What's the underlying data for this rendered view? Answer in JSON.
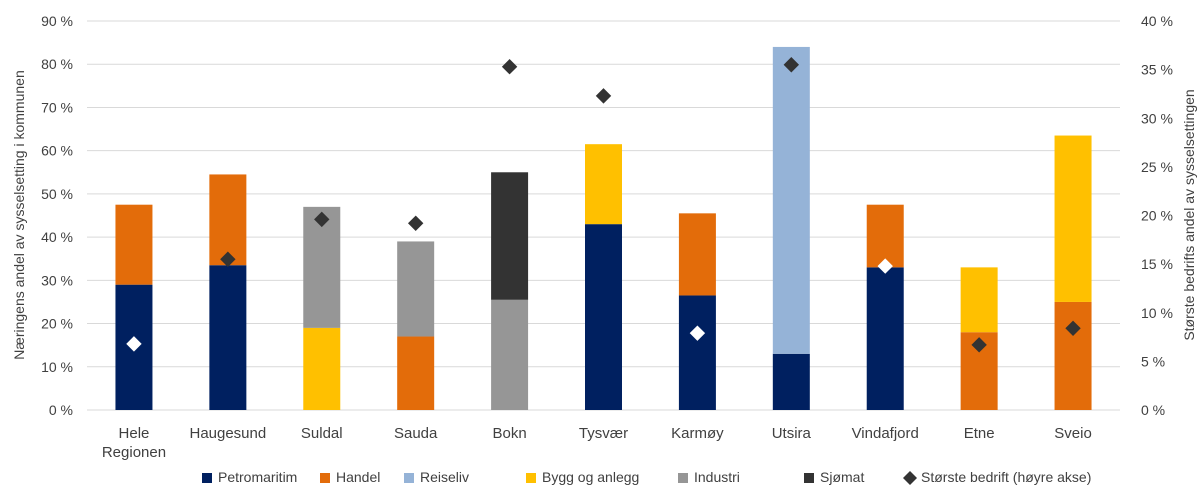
{
  "chart_data": {
    "type": "bar",
    "stacked": true,
    "categories": [
      [
        "Hele",
        "Regionen"
      ],
      [
        "Haugesund"
      ],
      [
        "Suldal"
      ],
      [
        "Sauda"
      ],
      [
        "Bokn"
      ],
      [
        "Tysvær"
      ],
      [
        "Karmøy"
      ],
      [
        "Utsira"
      ],
      [
        "Vindafjord"
      ],
      [
        "Etne"
      ],
      [
        "Sveio"
      ]
    ],
    "series": [
      {
        "name": "Petromaritim",
        "color": "#002060",
        "values": [
          29,
          33.5,
          0,
          0,
          0,
          43,
          26.5,
          13,
          33,
          0,
          0
        ]
      },
      {
        "name": "Handel",
        "color": "#E36C0A",
        "values": [
          18.5,
          21,
          0,
          17,
          0,
          0,
          19,
          0,
          14.5,
          18,
          25
        ]
      },
      {
        "name": "Reiseliv",
        "color": "#95B3D7",
        "values": [
          0,
          0,
          0,
          0,
          0,
          0,
          0,
          71,
          0,
          0,
          0
        ]
      },
      {
        "name": "Bygg og anlegg",
        "color": "#FFC000",
        "values": [
          0,
          0,
          19,
          0,
          0,
          18.5,
          0,
          0,
          0,
          15,
          38.5
        ]
      },
      {
        "name": "Industri",
        "color": "#969696",
        "values": [
          0,
          0,
          28,
          22,
          25.5,
          0,
          0,
          0,
          0,
          0,
          0
        ]
      },
      {
        "name": "Sjømat",
        "color": "#333333",
        "values": [
          0,
          0,
          0,
          0,
          29.5,
          0,
          0,
          0,
          0,
          0,
          0
        ]
      }
    ],
    "scatter_series": {
      "name": "Største bedrift (høyre akse)",
      "values": [
        6.8,
        15.5,
        19.6,
        19.2,
        35.3,
        32.3,
        7.9,
        35.5,
        14.8,
        6.7,
        8.4
      ],
      "highlight": [
        true,
        false,
        false,
        false,
        false,
        false,
        true,
        false,
        true,
        false,
        false
      ]
    },
    "ylabel": "Næringens andel av sysselsetting i kommunen",
    "y2label": "Største bedrifts andel av sysselsettingen",
    "ylim": [
      0,
      90
    ],
    "y2lim": [
      0,
      40
    ],
    "yticks": [
      "0 %",
      "10 %",
      "20 %",
      "30 %",
      "40 %",
      "50 %",
      "60 %",
      "70 %",
      "80 %",
      "90 %"
    ],
    "y2ticks": [
      "0 %",
      "5 %",
      "10 %",
      "15 %",
      "20 %",
      "25 %",
      "30 %",
      "35 %",
      "40 %"
    ],
    "grid": true,
    "legend_position": "bottom"
  }
}
